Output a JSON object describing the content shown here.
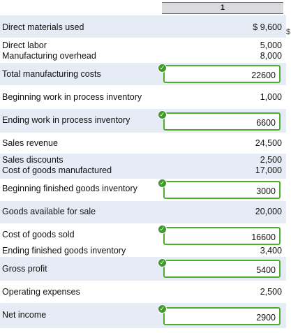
{
  "header": {
    "column_label": "1"
  },
  "rows": {
    "direct_materials": {
      "label": "Direct materials used",
      "value": "$ 9,600"
    },
    "direct_labor": {
      "label": "Direct labor",
      "value": "5,000"
    },
    "manufacturing_overhead": {
      "label": "Manufacturing overhead",
      "value": "8,000"
    },
    "total_manufacturing_costs": {
      "label": "Total manufacturing costs",
      "answer": "22600"
    },
    "beginning_wip": {
      "label": "Beginning work in process inventory",
      "value": "1,000"
    },
    "ending_wip": {
      "label": "Ending work in process inventory",
      "answer": "6600"
    },
    "sales_revenue": {
      "label": "Sales revenue",
      "value": "24,500"
    },
    "sales_discounts": {
      "label": "Sales discounts",
      "value": "2,500"
    },
    "cogm": {
      "label": "Cost of goods manufactured",
      "value": "17,000"
    },
    "beginning_fg": {
      "label": "Beginning finished goods inventory",
      "answer": "3000"
    },
    "goods_available": {
      "label": "Goods available for sale",
      "value": "20,000"
    },
    "cogs": {
      "label": "Cost of goods sold",
      "answer": "16600"
    },
    "ending_fg": {
      "label": "Ending finished goods inventory",
      "value": "3,400"
    },
    "gross_profit": {
      "label": "Gross profit",
      "answer": "5400"
    },
    "operating_expenses": {
      "label": "Operating expenses",
      "value": "2,500"
    },
    "net_income": {
      "label": "Net income",
      "answer": "2900"
    }
  },
  "edge_fragment": "$",
  "icons": {
    "check": "checkmark-icon"
  },
  "colors": {
    "row_shade": "#e5ecf6",
    "correct_border": "#4cae2c",
    "check_fill": "#3e9b2a"
  }
}
